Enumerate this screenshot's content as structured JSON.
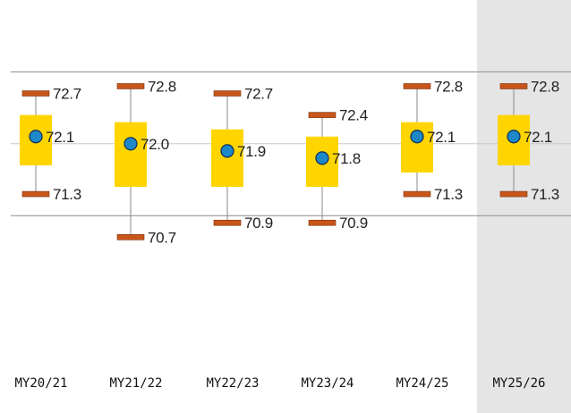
{
  "chart_data": {
    "type": "box",
    "categories": [
      "MY20/21",
      "MY21/22",
      "MY22/23",
      "MY23/24",
      "MY24/25",
      "MY25/26"
    ],
    "series": [
      {
        "category": "MY20/21",
        "max": 72.7,
        "mid": 72.1,
        "min": 71.3,
        "box_high": 72.4,
        "box_low": 71.7,
        "max_label": "72.7",
        "mid_label": "72.1",
        "min_label": "71.3"
      },
      {
        "category": "MY21/22",
        "max": 72.8,
        "mid": 72.0,
        "min": 70.7,
        "box_high": 72.3,
        "box_low": 71.4,
        "max_label": "72.8",
        "mid_label": "72.0",
        "min_label": "70.7"
      },
      {
        "category": "MY22/23",
        "max": 72.7,
        "mid": 71.9,
        "min": 70.9,
        "box_high": 72.2,
        "box_low": 71.4,
        "max_label": "72.7",
        "mid_label": "71.9",
        "min_label": "70.9"
      },
      {
        "category": "MY23/24",
        "max": 72.4,
        "mid": 71.8,
        "min": 70.9,
        "box_high": 72.1,
        "box_low": 71.4,
        "max_label": "72.4",
        "mid_label": "71.8",
        "min_label": "70.9"
      },
      {
        "category": "MY24/25",
        "max": 72.8,
        "mid": 72.1,
        "min": 71.3,
        "box_high": 72.3,
        "box_low": 71.6,
        "max_label": "72.8",
        "mid_label": "72.1",
        "min_label": "71.3"
      },
      {
        "category": "MY25/26",
        "max": 72.8,
        "mid": 72.1,
        "min": 71.3,
        "box_high": 72.4,
        "box_low": 71.7,
        "max_label": "72.8",
        "mid_label": "72.1",
        "min_label": "71.3"
      }
    ],
    "reference_lines": [
      73.0,
      72.0,
      71.0
    ],
    "highlight_category": "MY25/26",
    "ylim": [
      69.0,
      74.0
    ],
    "grid": false,
    "title": "",
    "xlabel": "",
    "ylabel": ""
  },
  "colors": {
    "box": "#FFD500",
    "marker_fill": "#1E88C8",
    "marker_stroke": "#0D2B5C",
    "cap": "#C8561A",
    "cap_stroke": "#7A3210",
    "whisker": "#8a8a8a",
    "ref_line_dark": "#8c8c8c",
    "ref_line_light": "#c8c8c8",
    "highlight_bg": "#E5E5E5"
  }
}
